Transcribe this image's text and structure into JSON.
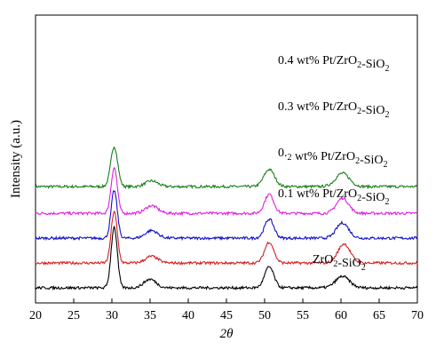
{
  "chart_data": {
    "type": "line",
    "xlabel": "2θ",
    "ylabel": "Intensity (a.u.)",
    "xlim": [
      20,
      70
    ],
    "xticks": [
      20,
      25,
      30,
      35,
      40,
      45,
      50,
      55,
      60,
      65,
      70
    ],
    "y_tick_labels": "none",
    "grid": false,
    "legend": "inline labels above each trace",
    "series": [
      {
        "name": "0.4 wt% Pt/ZrO2-SiO2",
        "color": "#1a7f1a",
        "offset": 5.3,
        "peaks": [
          [
            30.3,
            2.1,
            0.45
          ],
          [
            35.2,
            0.3,
            0.8
          ],
          [
            50.6,
            0.9,
            0.7
          ],
          [
            60.2,
            0.7,
            0.9
          ]
        ]
      },
      {
        "name": "0.3 wt% Pt/ZrO2-SiO2",
        "color": "#e01ee0",
        "offset": 3.9,
        "peaks": [
          [
            30.3,
            2.4,
            0.4
          ],
          [
            35.2,
            0.4,
            0.8
          ],
          [
            50.6,
            1.0,
            0.6
          ],
          [
            60.2,
            0.8,
            0.8
          ]
        ]
      },
      {
        "name": "0.2 wt% Pt/ZrO2-SiO2",
        "color": "#1010c8",
        "offset": 2.6,
        "peaks": [
          [
            30.3,
            2.5,
            0.4
          ],
          [
            35.2,
            0.4,
            0.8
          ],
          [
            50.6,
            1.0,
            0.6
          ],
          [
            60.2,
            0.8,
            0.8
          ]
        ]
      },
      {
        "name": "0.1 wt% Pt/ZrO2-SiO2",
        "color": "#d42020",
        "offset": 1.3,
        "peaks": [
          [
            30.3,
            2.7,
            0.4
          ],
          [
            35.2,
            0.35,
            0.8
          ],
          [
            50.6,
            1.1,
            0.6
          ],
          [
            60.4,
            1.0,
            0.8
          ]
        ]
      },
      {
        "name": "ZrO2-SiO2",
        "color": "#000000",
        "offset": 0.0,
        "peaks": [
          [
            30.3,
            3.2,
            0.4
          ],
          [
            35.0,
            0.45,
            0.8
          ],
          [
            50.6,
            1.1,
            0.6
          ],
          [
            60.2,
            0.6,
            0.9
          ]
        ]
      }
    ]
  }
}
